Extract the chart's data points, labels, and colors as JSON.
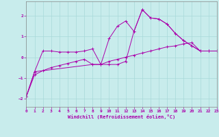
{
  "xlabel": "Windchill (Refroidissement éolien,°C)",
  "bg_color": "#c8ecec",
  "grid_color": "#a8d8d8",
  "line_color": "#aa00aa",
  "xlim": [
    0,
    23
  ],
  "ylim": [
    -2.4,
    2.7
  ],
  "xticks": [
    0,
    1,
    2,
    3,
    4,
    5,
    6,
    7,
    8,
    9,
    10,
    11,
    12,
    13,
    14,
    15,
    16,
    17,
    18,
    19,
    20,
    21,
    22,
    23
  ],
  "yticks": [
    -2,
    -1,
    0,
    1,
    2
  ],
  "series1_x": [
    0,
    1,
    2,
    3,
    4,
    5,
    6,
    7,
    8,
    9,
    10,
    11,
    12,
    13,
    14,
    15,
    16,
    17,
    18,
    19,
    20,
    21,
    22,
    23
  ],
  "series1_y": [
    -1.9,
    -0.7,
    0.3,
    0.3,
    0.25,
    0.25,
    0.25,
    0.3,
    0.4,
    -0.35,
    -0.35,
    -0.35,
    -0.2,
    1.25,
    2.3,
    1.9,
    1.85,
    1.6,
    1.15,
    0.8,
    0.55,
    0.3,
    0.3,
    0.3
  ],
  "series2_x": [
    0,
    1,
    2,
    3,
    4,
    5,
    6,
    7,
    8,
    9,
    10,
    11,
    12,
    13,
    14,
    15,
    16,
    17,
    18,
    19,
    20,
    21,
    22,
    23
  ],
  "series2_y": [
    -1.9,
    -0.85,
    -0.65,
    -0.5,
    -0.4,
    -0.3,
    -0.2,
    -0.1,
    -0.35,
    -0.35,
    -0.2,
    -0.1,
    0.0,
    0.1,
    0.2,
    0.3,
    0.4,
    0.5,
    0.55,
    0.65,
    0.7,
    0.3,
    0.3,
    0.3
  ],
  "series3_x": [
    0,
    1,
    8,
    9,
    10,
    11,
    12,
    13,
    14,
    15,
    16,
    17,
    18,
    19,
    20,
    21,
    22,
    23
  ],
  "series3_y": [
    -1.9,
    -0.7,
    -0.35,
    -0.35,
    0.9,
    1.5,
    1.75,
    1.25,
    2.3,
    1.9,
    1.85,
    1.6,
    1.15,
    0.8,
    0.55,
    0.3,
    0.3,
    0.3
  ]
}
